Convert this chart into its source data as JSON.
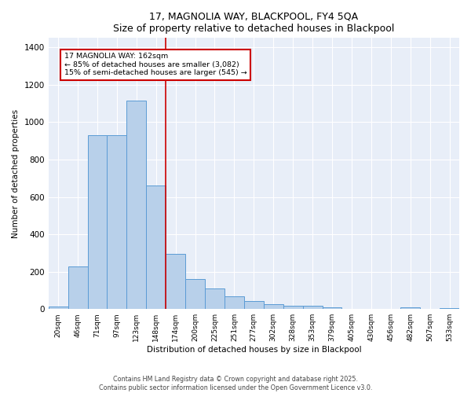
{
  "title_line1": "17, MAGNOLIA WAY, BLACKPOOL, FY4 5QA",
  "title_line2": "Size of property relative to detached houses in Blackpool",
  "xlabel": "Distribution of detached houses by size in Blackpool",
  "ylabel": "Number of detached properties",
  "categories": [
    "20sqm",
    "46sqm",
    "71sqm",
    "97sqm",
    "123sqm",
    "148sqm",
    "174sqm",
    "200sqm",
    "225sqm",
    "251sqm",
    "277sqm",
    "302sqm",
    "328sqm",
    "353sqm",
    "379sqm",
    "405sqm",
    "430sqm",
    "456sqm",
    "482sqm",
    "507sqm",
    "533sqm"
  ],
  "values": [
    15,
    230,
    930,
    930,
    1115,
    660,
    295,
    160,
    110,
    70,
    45,
    25,
    18,
    18,
    10,
    0,
    0,
    0,
    10,
    0,
    5
  ],
  "bar_color": "#b8d0ea",
  "bar_edge_color": "#5b9bd5",
  "annotation_line1": "17 MAGNOLIA WAY: 162sqm",
  "annotation_line2": "← 85% of detached houses are smaller (3,082)",
  "annotation_line3": "15% of semi-detached houses are larger (545) →",
  "annotation_box_facecolor": "#ffffff",
  "annotation_box_edgecolor": "#cc0000",
  "vline_color": "#cc0000",
  "footer_line1": "Contains HM Land Registry data © Crown copyright and database right 2025.",
  "footer_line2": "Contains public sector information licensed under the Open Government Licence v3.0.",
  "ylim": [
    0,
    1450
  ],
  "background_color": "#e8eef8",
  "grid_color": "#ffffff",
  "fig_background": "#ffffff",
  "vline_x_index": 5.5
}
